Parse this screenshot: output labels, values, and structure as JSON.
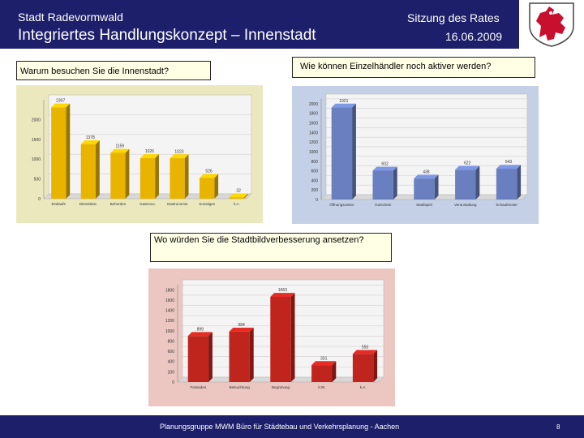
{
  "header": {
    "org": "Stadt Radevormwald",
    "title": "Integriertes Handlungskonzept – Innenstadt",
    "meeting": "Sitzung des Rates",
    "date": "16.06.2009",
    "background": "#1d1f6b"
  },
  "crest": {
    "icon": "city-crest-icon",
    "colors": [
      "#c8102e",
      "#ffffff",
      "#444444"
    ]
  },
  "questions": {
    "q1": "Warum besuchen Sie die Innenstadt?",
    "q2": "Wie können Einzelhändler noch aktiver werden?",
    "q3": "Wo würden Sie die Stadtbildverbesserung ansetzen?"
  },
  "chart_data": [
    {
      "type": "bar",
      "categories": [
        "Einkäufe",
        "Dienstleist.",
        "Behörden",
        "Gastrono.",
        "Gastronomie",
        "Sonstiges",
        "k.A."
      ],
      "values": [
        2307,
        1378,
        1159,
        1026,
        1023,
        526,
        32
      ],
      "value_labels": [
        "2307",
        "1378",
        "1159",
        "1026",
        "1023",
        "526",
        "32"
      ],
      "yticks": [
        0,
        500,
        1000,
        1500,
        2000
      ],
      "ylim": [
        0,
        2500
      ],
      "color": "#e8b400",
      "grid": true
    },
    {
      "type": "bar",
      "categories": [
        "Öffnungszeiten",
        "Gutschein",
        "Stadtspiel",
        "Veranstaltung",
        "Schaufenster"
      ],
      "values": [
        1921,
        602,
        438,
        622,
        643
      ],
      "value_labels": [
        "1921",
        "602",
        "438",
        "622",
        "643"
      ],
      "yticks": [
        0,
        200,
        400,
        600,
        800,
        1000,
        1200,
        1400,
        1600,
        1800,
        2000
      ],
      "ylim": [
        0,
        2100
      ],
      "color": "#6a7fc0",
      "grid": true
    },
    {
      "type": "bar",
      "categories": [
        "Fassaden",
        "Beleuchtung",
        "Begrünung",
        "k.W.",
        "k.A."
      ],
      "values": [
        899,
        984,
        1663,
        331,
        550
      ],
      "value_labels": [
        "899",
        "984",
        "1663",
        "331",
        "550"
      ],
      "yticks": [
        0,
        200,
        400,
        600,
        800,
        1000,
        1200,
        1400,
        1600,
        1800
      ],
      "ylim": [
        0,
        1900
      ],
      "color": "#c0251d",
      "grid": true
    }
  ],
  "footer": {
    "text": "Planungsgruppe MWM Büro für Städtebau und Verkehrsplanung - Aachen",
    "page": "8"
  }
}
